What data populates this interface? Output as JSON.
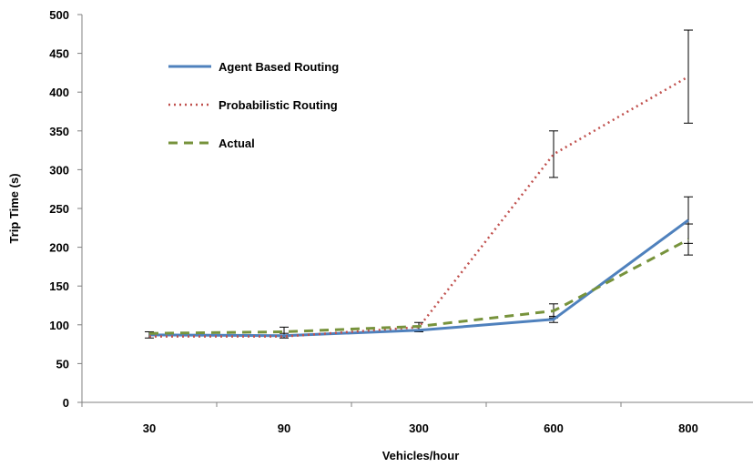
{
  "chart_data": {
    "type": "line",
    "title": "",
    "xlabel": "Vehicles/hour",
    "ylabel": "Trip Time (s)",
    "categories": [
      "30",
      "90",
      "300",
      "600",
      "800"
    ],
    "ylim": [
      0,
      500
    ],
    "yticks": [
      0,
      50,
      100,
      150,
      200,
      250,
      300,
      350,
      400,
      450,
      500
    ],
    "grid": false,
    "legend_position": "top-left",
    "series": [
      {
        "name": "Agent Based Routing",
        "values": [
          87,
          86,
          93,
          107,
          235
        ],
        "error": [
          4,
          3,
          0,
          4,
          30
        ],
        "color": "#4f81bd",
        "style": "solid"
      },
      {
        "name": "Probabilistic Routing",
        "values": [
          85,
          85,
          97,
          320,
          420
        ],
        "error": [
          0,
          0,
          6,
          30,
          60
        ],
        "color": "#c0504d",
        "style": "dotted"
      },
      {
        "name": "Actual",
        "values": [
          89,
          91,
          98,
          118,
          210
        ],
        "error": [
          0,
          6,
          0,
          9,
          20
        ],
        "color": "#77933c",
        "style": "dashed"
      }
    ]
  }
}
